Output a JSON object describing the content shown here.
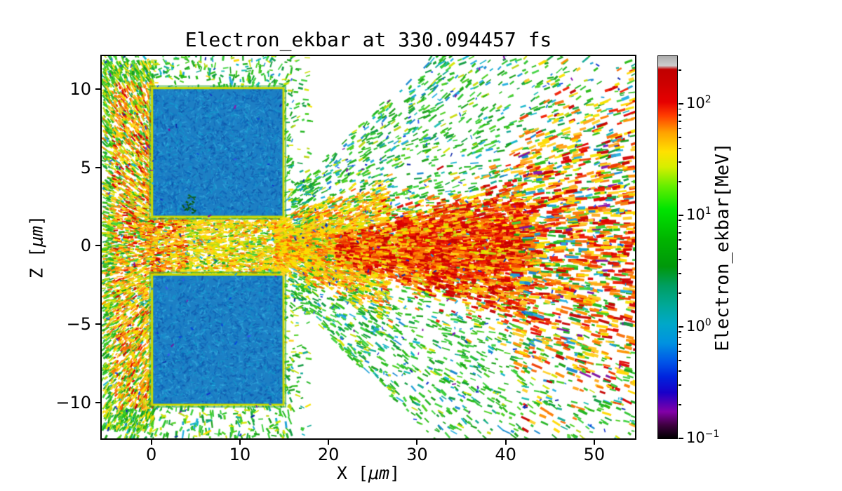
{
  "chart_data": {
    "type": "heatmap",
    "title": "Electron_ekbar at 330.094457 fs",
    "xlabel_prefix": "X [",
    "xlabel_math": "μm",
    "xlabel_suffix": "]",
    "ylabel_prefix": "Z [",
    "ylabel_math": "μm",
    "ylabel_suffix": "]",
    "xlim": [
      -5.6,
      54.6
    ],
    "ylim": [
      -12.3,
      12.1
    ],
    "xticks": [
      0,
      10,
      20,
      30,
      40,
      50
    ],
    "yticks": [
      -10,
      -5,
      0,
      5,
      10
    ],
    "grid": false,
    "colorbar": {
      "label": "Electron_ekbar[MeV]",
      "scale": "log",
      "unit": "MeV",
      "vmin_log": -1,
      "vmax_log": 2.43,
      "major_ticks_exp": [
        -1,
        0,
        1,
        2
      ],
      "colormap": "nipy_spectral",
      "colormap_stops": [
        [
          0.0,
          "#000000"
        ],
        [
          0.035,
          "#3f0040"
        ],
        [
          0.07,
          "#8200a8"
        ],
        [
          0.12,
          "#1800c8"
        ],
        [
          0.16,
          "#0022dd"
        ],
        [
          0.2,
          "#0055e8"
        ],
        [
          0.25,
          "#0092e0"
        ],
        [
          0.3,
          "#00a8c8"
        ],
        [
          0.35,
          "#00a896"
        ],
        [
          0.4,
          "#009e60"
        ],
        [
          0.45,
          "#00980a"
        ],
        [
          0.52,
          "#00b400"
        ],
        [
          0.6,
          "#00e400"
        ],
        [
          0.66,
          "#66ee00"
        ],
        [
          0.71,
          "#d6ee00"
        ],
        [
          0.75,
          "#ffe100"
        ],
        [
          0.8,
          "#ffa200"
        ],
        [
          0.845,
          "#ff3c00"
        ],
        [
          0.88,
          "#e60000"
        ],
        [
          0.93,
          "#cc0000"
        ],
        [
          0.965,
          "#c00000"
        ],
        [
          0.975,
          "#cdcdcd"
        ],
        [
          1.0,
          "#adadad"
        ]
      ]
    },
    "features": {
      "seed": 42,
      "target_blocks": [
        {
          "x": [
            0,
            15
          ],
          "z": [
            1.8,
            10.1
          ]
        },
        {
          "x": [
            0,
            15
          ],
          "z": [
            -10.2,
            -1.8
          ]
        }
      ],
      "channel": {
        "x": [
          -0.5,
          15.5
        ],
        "z": [
          -1.85,
          1.85
        ]
      },
      "jet": {
        "x": [
          14,
          27
        ],
        "base_halfwidth": 1.9,
        "spread": 0.28
      },
      "hot_core": {
        "x": [
          21,
          43.5
        ],
        "base_halfwidth": 0.9,
        "spread": 0.17,
        "z_offset": -0.3
      },
      "left_band": {
        "x": [
          -5.4,
          0.3
        ],
        "z": [
          -11.8,
          11.8
        ]
      },
      "fan": {
        "x": [
          41,
          55.4
        ],
        "spread": 0.28
      },
      "spray_envelope": {
        "full_until_x": 16,
        "base_halfwidth": 2.5,
        "slope": 0.55,
        "max_halfwidth": 12.4
      }
    },
    "palette": {
      "block_base": "#1d7fc4",
      "block_texture": [
        "#0d5ab2",
        "#0c4fa6",
        "#2694d2",
        "#10a0cd",
        "#0b6cc0",
        "#35aee0",
        "#1e88cf"
      ],
      "block_edge": "#c8d800",
      "block_halo": "#2fae2f",
      "greens": [
        "#1db31d",
        "#2ec42e",
        "#17a017",
        "#3cd23c",
        "#0f9c40",
        "#25b912",
        "#49cf1e"
      ],
      "teals": [
        "#11a996",
        "#0fb3c9",
        "#19bdb0"
      ],
      "cyan_blues": [
        "#1b9fd6",
        "#1787d0",
        "#22aee0"
      ],
      "yellow_greens": [
        "#c8dc0a",
        "#b9d511",
        "#d5e600"
      ],
      "yellows": [
        "#ffd800",
        "#f7e300",
        "#ffcf26"
      ],
      "oranges": [
        "#ff9000",
        "#fd7a00",
        "#ffa81e",
        "#f86c07"
      ],
      "reds": [
        "#e00000",
        "#d40404",
        "#f01c00",
        "#c60000",
        "#ef3b00"
      ],
      "red_orange": "#ff5500",
      "blues": [
        "#1133cc",
        "#0b23a8",
        "#3355ee",
        "#0747e0"
      ],
      "purples": [
        "#7a0f9e",
        "#8a12b0"
      ],
      "dark_greens": [
        "#0e5d12",
        "#14691a",
        "#0b550e"
      ]
    }
  }
}
